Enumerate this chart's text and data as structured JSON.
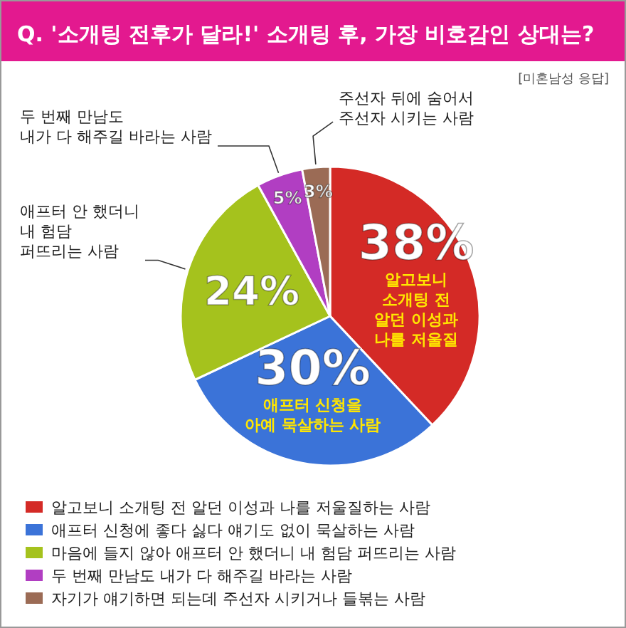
{
  "chart_data": {
    "type": "pie",
    "title": "Q. '소개팅 전후가 달라!' 소개팅 후, 가장 비호감인 상대는?",
    "subtitle": "[미혼남성 응답]",
    "categories": [
      "알고보니 소개팅 전 알던 이성과 나를 저울질하는 사람",
      "애프터 신청에 좋다 싫다 얘기도 없이 묵살하는 사람",
      "마음에 들지 않아 애프터 안 했더니 내 험담 퍼뜨리는 사람",
      "두 번째 만남도 내가 다 해주길 바라는 사람",
      "자기가 얘기하면 되는데 주선자 시키거나 들볶는 사람"
    ],
    "values": [
      38,
      30,
      24,
      5,
      3
    ],
    "value_labels": [
      "38%",
      "30%",
      "24%",
      "5%",
      "3%"
    ],
    "colors": [
      "#d42a26",
      "#3b73d8",
      "#a5c21d",
      "#b13ec2",
      "#9b6b55"
    ],
    "annotations": [
      "알고보니\n소개팅 전\n알던 이성과\n나를 저울질",
      "애프터 신청을\n아예 묵살하는 사람",
      "애프터 안 했더니\n내 험담\n퍼뜨리는 사람",
      "두 번째 만남도\n내가 다 해주길 바라는 사람",
      "주선자 뒤에 숨어서\n주선자 시키는 사람"
    ],
    "legend": "bottom"
  }
}
